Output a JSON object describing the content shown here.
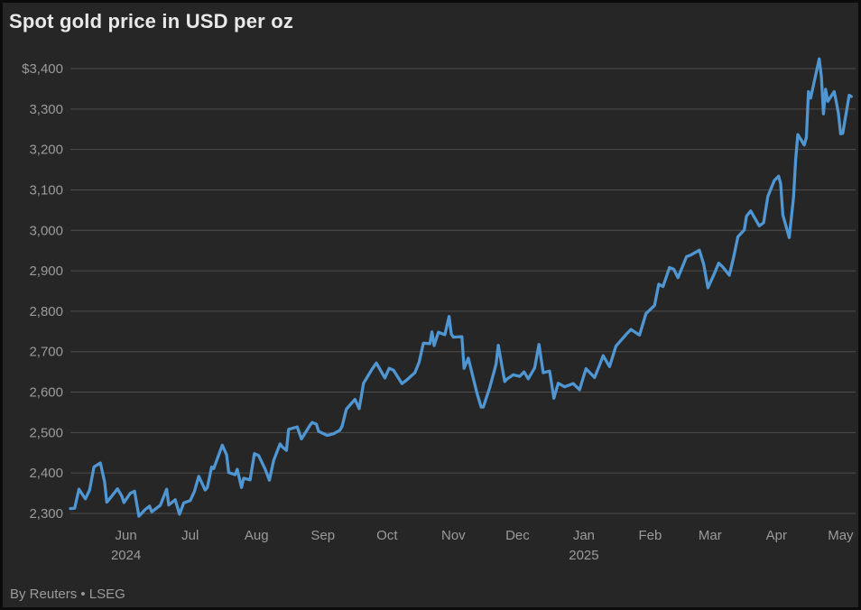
{
  "page": {
    "background_color": "#262626",
    "border_color": "#0b0b0b"
  },
  "chart_data": {
    "type": "line",
    "title": "Spot gold price in USD per oz",
    "source": "By Reuters • LSEG",
    "xlabel": "",
    "ylabel": "",
    "grid": "horizontal",
    "legend": "none",
    "line_color": "#4f96d2",
    "grid_color": "#4e4e4e",
    "axis_text_color": "#9b9b9b",
    "title_color": "#e9e9e9",
    "ylim": [
      2300,
      3400
    ],
    "y_ticks": [
      {
        "label": "$3,400",
        "value": 3400
      },
      {
        "label": "3,300",
        "value": 3300
      },
      {
        "label": "3,200",
        "value": 3200
      },
      {
        "label": "3,100",
        "value": 3100
      },
      {
        "label": "3,000",
        "value": 3000
      },
      {
        "label": "2,900",
        "value": 2900
      },
      {
        "label": "2,800",
        "value": 2800
      },
      {
        "label": "2,700",
        "value": 2700
      },
      {
        "label": "2,600",
        "value": 2600
      },
      {
        "label": "2,500",
        "value": 2500
      },
      {
        "label": "2,400",
        "value": 2400
      },
      {
        "label": "2,300",
        "value": 2300
      }
    ],
    "x_domain": [
      "2024-05-06",
      "2025-05-08"
    ],
    "month_ticks": [
      {
        "label": "Jun",
        "date": "2024-06-01",
        "year": "2024"
      },
      {
        "label": "Jul",
        "date": "2024-07-01"
      },
      {
        "label": "Aug",
        "date": "2024-08-01"
      },
      {
        "label": "Sep",
        "date": "2024-09-01"
      },
      {
        "label": "Oct",
        "date": "2024-10-01"
      },
      {
        "label": "Nov",
        "date": "2024-11-01"
      },
      {
        "label": "Dec",
        "date": "2024-12-01"
      },
      {
        "label": "Jan",
        "date": "2025-01-01",
        "year": "2025"
      },
      {
        "label": "Feb",
        "date": "2025-02-01"
      },
      {
        "label": "Mar",
        "date": "2025-03-01"
      },
      {
        "label": "Apr",
        "date": "2025-04-01"
      },
      {
        "label": "May",
        "date": "2025-05-01"
      }
    ],
    "series": [
      {
        "name": "Spot gold price (USD/oz)",
        "color": "#4f96d2",
        "points": [
          [
            "2024-05-06",
            2312
          ],
          [
            "2024-05-08",
            2313
          ],
          [
            "2024-05-10",
            2360
          ],
          [
            "2024-05-13",
            2336
          ],
          [
            "2024-05-15",
            2358
          ],
          [
            "2024-05-17",
            2415
          ],
          [
            "2024-05-20",
            2425
          ],
          [
            "2024-05-22",
            2378
          ],
          [
            "2024-05-23",
            2328
          ],
          [
            "2024-05-24",
            2334
          ],
          [
            "2024-05-28",
            2361
          ],
          [
            "2024-05-30",
            2343
          ],
          [
            "2024-05-31",
            2327
          ],
          [
            "2024-06-03",
            2350
          ],
          [
            "2024-06-05",
            2355
          ],
          [
            "2024-06-07",
            2293
          ],
          [
            "2024-06-10",
            2310
          ],
          [
            "2024-06-12",
            2318
          ],
          [
            "2024-06-13",
            2304
          ],
          [
            "2024-06-17",
            2320
          ],
          [
            "2024-06-20",
            2360
          ],
          [
            "2024-06-21",
            2321
          ],
          [
            "2024-06-24",
            2334
          ],
          [
            "2024-06-26",
            2298
          ],
          [
            "2024-06-28",
            2326
          ],
          [
            "2024-07-01",
            2332
          ],
          [
            "2024-07-03",
            2355
          ],
          [
            "2024-07-05",
            2392
          ],
          [
            "2024-07-08",
            2358
          ],
          [
            "2024-07-09",
            2364
          ],
          [
            "2024-07-11",
            2415
          ],
          [
            "2024-07-12",
            2411
          ],
          [
            "2024-07-16",
            2469
          ],
          [
            "2024-07-18",
            2445
          ],
          [
            "2024-07-19",
            2401
          ],
          [
            "2024-07-22",
            2396
          ],
          [
            "2024-07-23",
            2409
          ],
          [
            "2024-07-25",
            2364
          ],
          [
            "2024-07-26",
            2387
          ],
          [
            "2024-07-29",
            2383
          ],
          [
            "2024-07-31",
            2448
          ],
          [
            "2024-08-02",
            2443
          ],
          [
            "2024-08-05",
            2410
          ],
          [
            "2024-08-07",
            2382
          ],
          [
            "2024-08-09",
            2431
          ],
          [
            "2024-08-12",
            2472
          ],
          [
            "2024-08-13",
            2465
          ],
          [
            "2024-08-15",
            2456
          ],
          [
            "2024-08-16",
            2508
          ],
          [
            "2024-08-20",
            2514
          ],
          [
            "2024-08-22",
            2484
          ],
          [
            "2024-08-26",
            2518
          ],
          [
            "2024-08-27",
            2525
          ],
          [
            "2024-08-29",
            2521
          ],
          [
            "2024-08-30",
            2503
          ],
          [
            "2024-09-03",
            2493
          ],
          [
            "2024-09-06",
            2497
          ],
          [
            "2024-09-09",
            2506
          ],
          [
            "2024-09-10",
            2516
          ],
          [
            "2024-09-12",
            2558
          ],
          [
            "2024-09-16",
            2582
          ],
          [
            "2024-09-18",
            2559
          ],
          [
            "2024-09-20",
            2622
          ],
          [
            "2024-09-24",
            2657
          ],
          [
            "2024-09-26",
            2672
          ],
          [
            "2024-09-30",
            2635
          ],
          [
            "2024-10-02",
            2659
          ],
          [
            "2024-10-04",
            2654
          ],
          [
            "2024-10-08",
            2621
          ],
          [
            "2024-10-10",
            2629
          ],
          [
            "2024-10-14",
            2648
          ],
          [
            "2024-10-16",
            2674
          ],
          [
            "2024-10-18",
            2721
          ],
          [
            "2024-10-21",
            2720
          ],
          [
            "2024-10-22",
            2749
          ],
          [
            "2024-10-23",
            2715
          ],
          [
            "2024-10-25",
            2748
          ],
          [
            "2024-10-28",
            2742
          ],
          [
            "2024-10-30",
            2787
          ],
          [
            "2024-10-31",
            2744
          ],
          [
            "2024-11-01",
            2736
          ],
          [
            "2024-11-05",
            2737
          ],
          [
            "2024-11-06",
            2659
          ],
          [
            "2024-11-08",
            2684
          ],
          [
            "2024-11-12",
            2598
          ],
          [
            "2024-11-14",
            2563
          ],
          [
            "2024-11-15",
            2563
          ],
          [
            "2024-11-18",
            2611
          ],
          [
            "2024-11-20",
            2650
          ],
          [
            "2024-11-21",
            2670
          ],
          [
            "2024-11-22",
            2716
          ],
          [
            "2024-11-25",
            2626
          ],
          [
            "2024-11-26",
            2632
          ],
          [
            "2024-11-29",
            2643
          ],
          [
            "2024-12-02",
            2639
          ],
          [
            "2024-12-04",
            2650
          ],
          [
            "2024-12-06",
            2633
          ],
          [
            "2024-12-09",
            2660
          ],
          [
            "2024-12-11",
            2718
          ],
          [
            "2024-12-13",
            2648
          ],
          [
            "2024-12-16",
            2652
          ],
          [
            "2024-12-18",
            2585
          ],
          [
            "2024-12-20",
            2622
          ],
          [
            "2024-12-23",
            2613
          ],
          [
            "2024-12-27",
            2621
          ],
          [
            "2024-12-30",
            2606
          ],
          [
            "2024-12-31",
            2624
          ],
          [
            "2025-01-02",
            2658
          ],
          [
            "2025-01-06",
            2636
          ],
          [
            "2025-01-08",
            2662
          ],
          [
            "2025-01-10",
            2690
          ],
          [
            "2025-01-13",
            2663
          ],
          [
            "2025-01-15",
            2697
          ],
          [
            "2025-01-16",
            2714
          ],
          [
            "2025-01-21",
            2744
          ],
          [
            "2025-01-23",
            2755
          ],
          [
            "2025-01-27",
            2741
          ],
          [
            "2025-01-30",
            2794
          ],
          [
            "2025-02-03",
            2814
          ],
          [
            "2025-02-05",
            2867
          ],
          [
            "2025-02-07",
            2861
          ],
          [
            "2025-02-10",
            2908
          ],
          [
            "2025-02-12",
            2904
          ],
          [
            "2025-02-14",
            2883
          ],
          [
            "2025-02-18",
            2935
          ],
          [
            "2025-02-20",
            2939
          ],
          [
            "2025-02-24",
            2951
          ],
          [
            "2025-02-26",
            2916
          ],
          [
            "2025-02-28",
            2858
          ],
          [
            "2025-03-03",
            2893
          ],
          [
            "2025-03-05",
            2919
          ],
          [
            "2025-03-07",
            2909
          ],
          [
            "2025-03-10",
            2889
          ],
          [
            "2025-03-12",
            2934
          ],
          [
            "2025-03-14",
            2984
          ],
          [
            "2025-03-17",
            3001
          ],
          [
            "2025-03-18",
            3035
          ],
          [
            "2025-03-20",
            3048
          ],
          [
            "2025-03-24",
            3011
          ],
          [
            "2025-03-26",
            3019
          ],
          [
            "2025-03-28",
            3084
          ],
          [
            "2025-03-31",
            3123
          ],
          [
            "2025-04-02",
            3134
          ],
          [
            "2025-04-03",
            3115
          ],
          [
            "2025-04-04",
            3038
          ],
          [
            "2025-04-07",
            2982
          ],
          [
            "2025-04-09",
            3083
          ],
          [
            "2025-04-10",
            3175
          ],
          [
            "2025-04-11",
            3237
          ],
          [
            "2025-04-14",
            3211
          ],
          [
            "2025-04-15",
            3230
          ],
          [
            "2025-04-16",
            3343
          ],
          [
            "2025-04-17",
            3327
          ],
          [
            "2025-04-21",
            3424
          ],
          [
            "2025-04-22",
            3380
          ],
          [
            "2025-04-23",
            3288
          ],
          [
            "2025-04-24",
            3349
          ],
          [
            "2025-04-25",
            3319
          ],
          [
            "2025-04-28",
            3343
          ],
          [
            "2025-04-29",
            3317
          ],
          [
            "2025-04-30",
            3289
          ],
          [
            "2025-05-01",
            3239
          ],
          [
            "2025-05-02",
            3240
          ],
          [
            "2025-05-05",
            3334
          ],
          [
            "2025-05-06",
            3331
          ]
        ]
      }
    ]
  }
}
